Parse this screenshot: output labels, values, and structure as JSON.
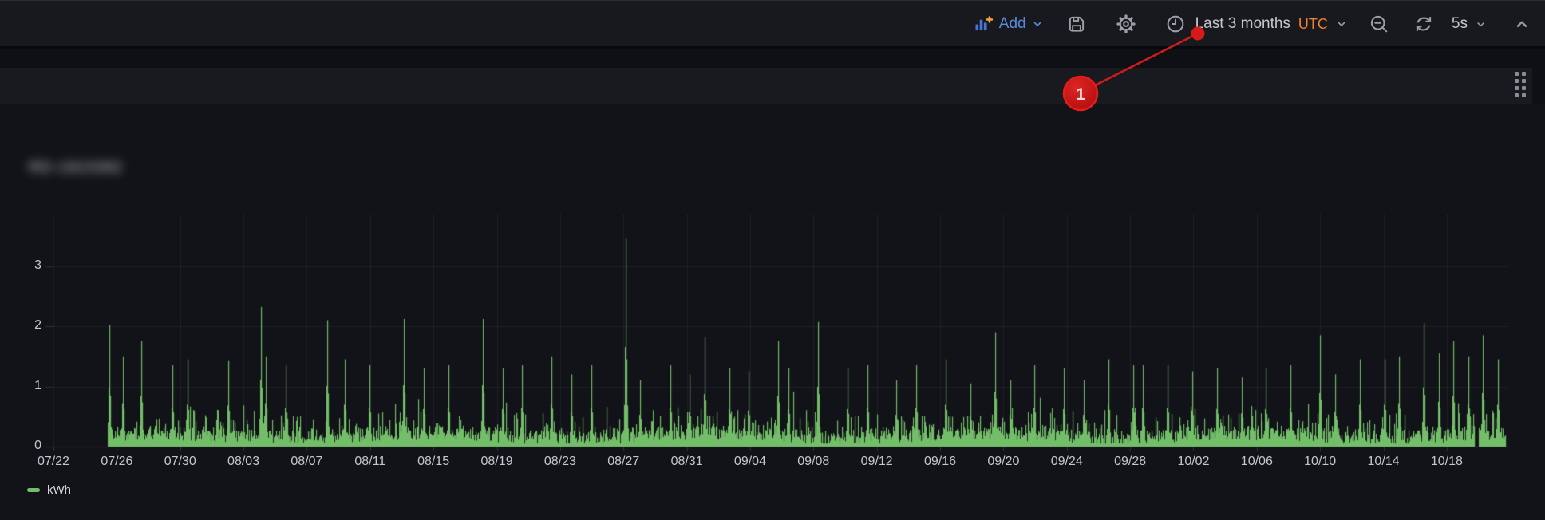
{
  "toolbar": {
    "add": {
      "label": "Add",
      "icon": "bar-chart-plus-icon"
    },
    "save_icon": "save-floppy-icon",
    "settings_icon": "gear-icon",
    "time_picker": {
      "icon": "clock-icon",
      "range_label": "Last 3 months",
      "timezone": "UTC"
    },
    "zoom_out_icon": "magnifier-minus-icon",
    "refresh_icon": "refresh-icon",
    "refresh_interval": "5s",
    "collapse_icon": "caret-up-icon"
  },
  "panel": {
    "title": "RD-1923382",
    "title_blurred": true,
    "drag_handle_icon": "drag-dots-icon"
  },
  "annotation": {
    "number": "1",
    "color": "#d61a1a"
  },
  "chart_data": {
    "type": "area",
    "title": "",
    "xlabel": "",
    "ylabel": "",
    "unit": "kWh",
    "grid": true,
    "legend_position": "bottom-left",
    "legend": [
      {
        "label": "kWh",
        "color": "#73BF69"
      }
    ],
    "x_tick_labels": [
      "07/22",
      "07/26",
      "07/30",
      "08/03",
      "08/07",
      "08/11",
      "08/15",
      "08/19",
      "08/23",
      "08/27",
      "08/31",
      "09/04",
      "09/08",
      "09/12",
      "09/16",
      "09/20",
      "09/24",
      "09/28",
      "10/02",
      "10/06",
      "10/10",
      "10/14",
      "10/18"
    ],
    "days_per_tick": 4,
    "y_ticks": [
      0,
      1,
      2,
      3
    ],
    "ylim": [
      0,
      3.85
    ],
    "data_start_day": 3.45,
    "data_end_day": 91.7,
    "gap_days": [
      [
        89.72,
        90.0
      ]
    ],
    "baseline_noise": {
      "min": 0.05,
      "typical_max": 0.6,
      "seed": 1337
    },
    "spikes": [
      [
        3.55,
        2.02
      ],
      [
        4.4,
        1.5
      ],
      [
        5.52,
        1.75
      ],
      [
        7.51,
        1.35
      ],
      [
        8.45,
        1.45
      ],
      [
        11.06,
        1.42
      ],
      [
        13.11,
        2.32
      ],
      [
        13.42,
        1.5
      ],
      [
        14.67,
        1.35
      ],
      [
        17.28,
        2.1
      ],
      [
        18.4,
        1.45
      ],
      [
        19.96,
        1.35
      ],
      [
        22.14,
        2.12
      ],
      [
        23.38,
        1.3
      ],
      [
        24.94,
        1.35
      ],
      [
        27.12,
        2.12
      ],
      [
        28.36,
        1.3
      ],
      [
        29.61,
        1.35
      ],
      [
        31.47,
        1.5
      ],
      [
        32.72,
        1.2
      ],
      [
        33.96,
        1.35
      ],
      [
        36.14,
        3.45
      ],
      [
        37.07,
        1.1
      ],
      [
        38.94,
        1.35
      ],
      [
        40.18,
        1.2
      ],
      [
        41.12,
        1.82
      ],
      [
        42.67,
        1.3
      ],
      [
        43.92,
        1.25
      ],
      [
        45.78,
        1.75
      ],
      [
        46.41,
        1.3
      ],
      [
        48.27,
        2.07
      ],
      [
        50.14,
        1.3
      ],
      [
        51.39,
        1.35
      ],
      [
        53.25,
        1.1
      ],
      [
        54.5,
        1.35
      ],
      [
        56.36,
        1.45
      ],
      [
        57.92,
        1.05
      ],
      [
        59.47,
        1.9
      ],
      [
        60.41,
        1.1
      ],
      [
        61.96,
        1.35
      ],
      [
        63.83,
        1.3
      ],
      [
        65.07,
        1.1
      ],
      [
        66.63,
        1.45
      ],
      [
        68.18,
        1.35
      ],
      [
        68.81,
        1.35
      ],
      [
        70.36,
        1.35
      ],
      [
        71.92,
        1.25
      ],
      [
        73.47,
        1.3
      ],
      [
        75.03,
        1.15
      ],
      [
        76.58,
        1.3
      ],
      [
        78.14,
        1.35
      ],
      [
        80.01,
        1.85
      ],
      [
        80.94,
        1.2
      ],
      [
        82.5,
        1.45
      ],
      [
        84.05,
        1.45
      ],
      [
        84.99,
        1.5
      ],
      [
        86.54,
        2.05
      ],
      [
        87.48,
        1.55
      ],
      [
        88.41,
        1.75
      ],
      [
        89.35,
        1.5
      ],
      [
        90.28,
        1.85
      ],
      [
        91.22,
        1.45
      ]
    ],
    "series_color": "#73BF69"
  }
}
